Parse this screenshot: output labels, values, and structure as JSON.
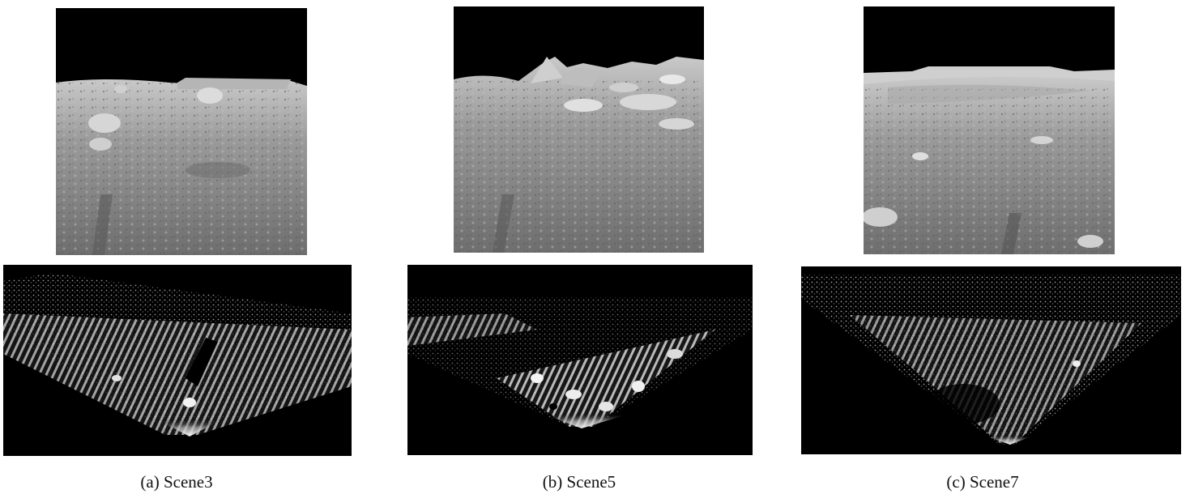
{
  "captions": {
    "a": "(a) Scene3",
    "b": "(b) Scene5",
    "c": "(c) Scene7"
  },
  "images": {
    "a": {
      "photo": "lunar-surface-photo",
      "cloud": "point-cloud-projection"
    },
    "b": {
      "photo": "lunar-surface-photo",
      "cloud": "point-cloud-projection"
    },
    "c": {
      "photo": "lunar-surface-photo",
      "cloud": "point-cloud-projection"
    }
  },
  "colors": {
    "sky": "#000000",
    "ground": "#8c8c8c",
    "points": "#ffffff"
  }
}
